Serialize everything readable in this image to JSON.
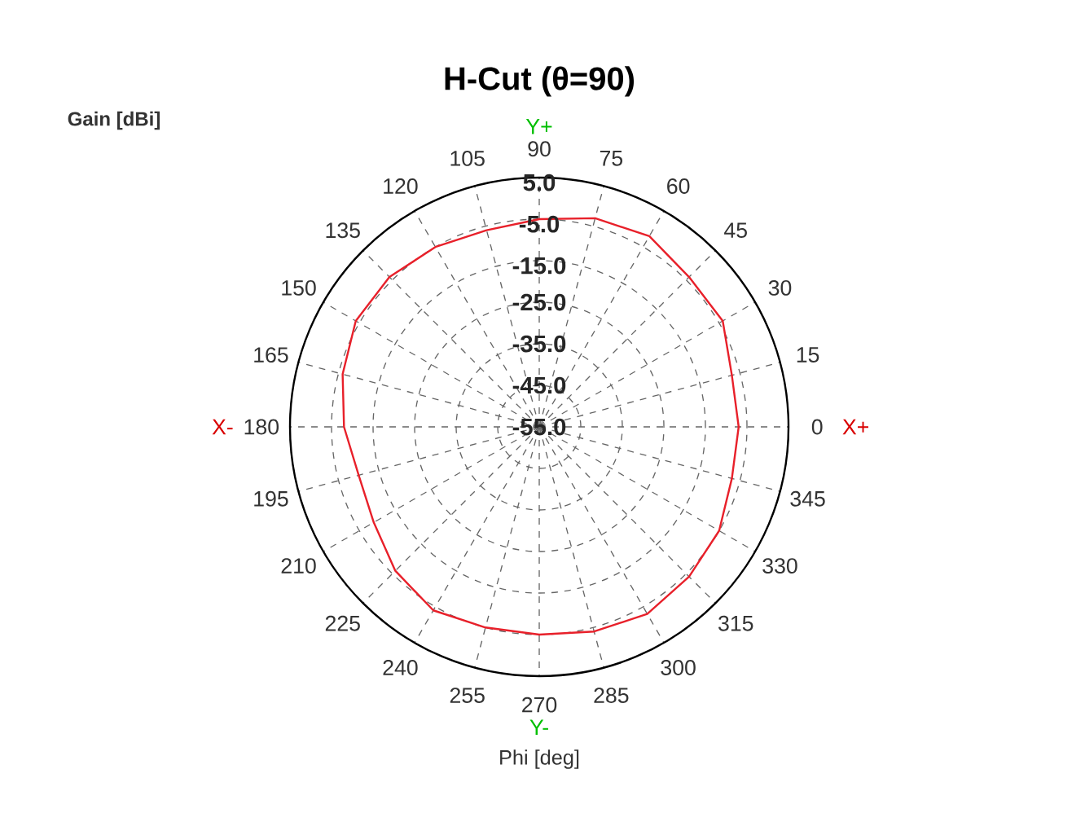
{
  "chart_data": {
    "type": "radar",
    "title": "H-Cut (θ=90)",
    "xlabel": "Phi [deg]",
    "ylabel": "Gain [dBi]",
    "categories": [
      "90",
      "75",
      "60",
      "45",
      "30",
      "15",
      "0",
      "345",
      "330",
      "315",
      "300",
      "285",
      "270",
      "255",
      "240",
      "225",
      "210",
      "195",
      "180",
      "165",
      "150",
      "135",
      "120",
      "105"
    ],
    "series": [
      {
        "color": "#e8202a",
        "values": [
          -5,
          -3,
          -2,
          -4,
          -4,
          -7,
          -7,
          -7,
          -5,
          -4,
          -3,
          -4,
          -5,
          -5,
          -4,
          -6,
          -9,
          -10,
          -8,
          -6,
          -4,
          -4,
          -5,
          -6
        ]
      }
    ],
    "ylim": [
      -55,
      5
    ],
    "yticks": [
      {
        "value": -55,
        "label": "-55.0"
      },
      {
        "value": -45,
        "label": "-45.0"
      },
      {
        "value": -35,
        "label": "-35.0"
      },
      {
        "value": -25,
        "label": "-25.0"
      },
      {
        "value": -15,
        "label": "-15.0"
      },
      {
        "value": -5,
        "label": "-5.0"
      },
      {
        "value": 5,
        "label": "5.0"
      }
    ],
    "grid": true,
    "annotations": [
      "X+",
      "X-",
      "Y+",
      "Y-"
    ]
  }
}
